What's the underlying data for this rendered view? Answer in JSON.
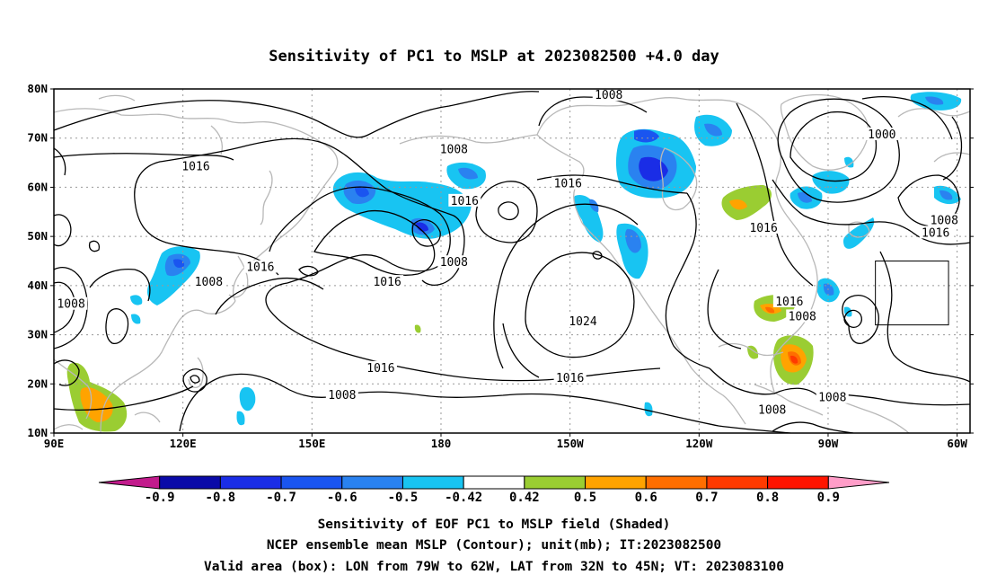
{
  "title": "Sensitivity of PC1 to MSLP at 2023082500 +4.0 day",
  "map": {
    "lon_range": [
      90,
      303
    ],
    "lat_range": [
      10,
      80
    ],
    "lat_ticks": [
      {
        "value": 80,
        "label": "80N"
      },
      {
        "value": 70,
        "label": "70N"
      },
      {
        "value": 60,
        "label": "60N"
      },
      {
        "value": 50,
        "label": "50N"
      },
      {
        "value": 40,
        "label": "40N"
      },
      {
        "value": 30,
        "label": "30N"
      },
      {
        "value": 20,
        "label": "20N"
      },
      {
        "value": 10,
        "label": "10N"
      }
    ],
    "lon_ticks": [
      {
        "value": 90,
        "label": "90E"
      },
      {
        "value": 120,
        "label": "120E"
      },
      {
        "value": 150,
        "label": "150E"
      },
      {
        "value": 180,
        "label": "180"
      },
      {
        "value": 210,
        "label": "150W"
      },
      {
        "value": 240,
        "label": "120W"
      },
      {
        "value": 270,
        "label": "90W"
      },
      {
        "value": 300,
        "label": "60W"
      }
    ],
    "valid_box": {
      "lon": [
        281,
        298
      ],
      "lat": [
        32,
        45
      ]
    },
    "contour_labels": [
      {
        "text": "1008",
        "lon": 183,
        "lat": 67.5
      },
      {
        "text": "1008",
        "lon": 219,
        "lat": 78.5
      },
      {
        "text": "1016",
        "lon": 123,
        "lat": 64
      },
      {
        "text": "1016",
        "lon": 185.5,
        "lat": 57
      },
      {
        "text": "1016",
        "lon": 209.5,
        "lat": 60.5
      },
      {
        "text": "1016",
        "lon": 138,
        "lat": 43.5
      },
      {
        "text": "1016",
        "lon": 167.5,
        "lat": 40.5
      },
      {
        "text": "1008",
        "lon": 183,
        "lat": 44.5
      },
      {
        "text": "1008",
        "lon": 126,
        "lat": 40.5
      },
      {
        "text": "1008",
        "lon": 94,
        "lat": 36
      },
      {
        "text": "1016",
        "lon": 255,
        "lat": 51.5
      },
      {
        "text": "1016",
        "lon": 261,
        "lat": 36.5
      },
      {
        "text": "1008",
        "lon": 264,
        "lat": 33.5
      },
      {
        "text": "1024",
        "lon": 213,
        "lat": 32.5
      },
      {
        "text": "1016",
        "lon": 166,
        "lat": 23
      },
      {
        "text": "1016",
        "lon": 210,
        "lat": 21
      },
      {
        "text": "1008",
        "lon": 157,
        "lat": 17.5
      },
      {
        "text": "1008",
        "lon": 271,
        "lat": 17
      },
      {
        "text": "1008",
        "lon": 257,
        "lat": 14.5
      },
      {
        "text": "1000",
        "lon": 282.5,
        "lat": 70.5
      },
      {
        "text": "1008",
        "lon": 297,
        "lat": 53
      },
      {
        "text": "1016",
        "lon": 295,
        "lat": 50.5
      }
    ]
  },
  "colorbar": {
    "colors": [
      "#c21b8c",
      "#0a0aa8",
      "#1a2de6",
      "#1a55f0",
      "#2a82f0",
      "#18c4f2",
      "#ffffff",
      "#9acd32",
      "#ffa300",
      "#ff6e00",
      "#ff3a00",
      "#ff1400",
      "#ff9dc8"
    ],
    "labels": [
      "-0.9",
      "-0.8",
      "-0.7",
      "-0.6",
      "-0.5",
      "-0.42",
      "0.42",
      "0.5",
      "0.6",
      "0.7",
      "0.8",
      "0.9"
    ]
  },
  "footer": {
    "line1": "Sensitivity of EOF PC1 to MSLP field (Shaded)",
    "line2": "NCEP ensemble mean MSLP (Contour); unit(mb); IT:2023082500",
    "line3": "Valid area (box): LON from 79W to 62W, LAT from 32N to 45N; VT: 2023083100"
  }
}
